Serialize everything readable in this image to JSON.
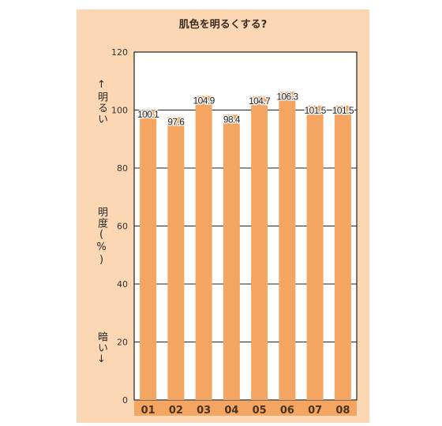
{
  "chart_data": {
    "type": "bar",
    "title": "肌色を明るくする?",
    "ylabel_top": "↑明るい",
    "ylabel_mid": "明度(%)",
    "ylabel_bottom": "暗い↓",
    "categories": [
      "01",
      "02",
      "03",
      "04",
      "05",
      "06",
      "07",
      "08"
    ],
    "values": [
      100.1,
      97.6,
      104.9,
      98.4,
      104.7,
      106.3,
      101.5,
      101.5
    ],
    "value_labels": [
      "100.1",
      "97.6",
      "104.9",
      "98.4",
      "104.7",
      "106.3",
      "101.5",
      "101.5"
    ],
    "ylim": [
      0,
      120
    ],
    "yticks": [
      "0",
      "20",
      "40",
      "60",
      "80",
      "100",
      "120"
    ],
    "grid": true,
    "colors": {
      "bar": "#f4a562",
      "background": "#fbd7b4",
      "plot_background": "#ffffff",
      "axis_band": "#f4a562",
      "category_label": "#4a3320"
    }
  }
}
